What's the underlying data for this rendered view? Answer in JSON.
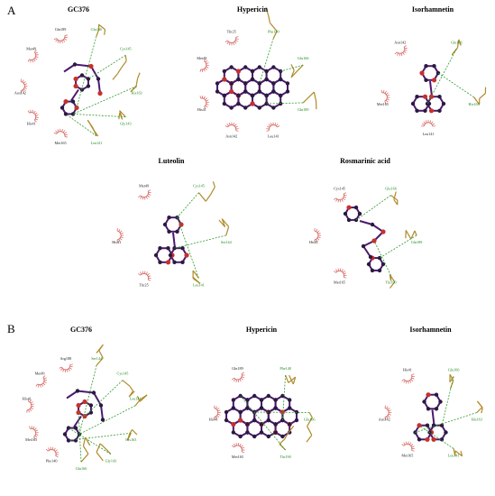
{
  "panels": [
    {
      "letter": "A",
      "diagrams": [
        {
          "title": "GC376",
          "residues_green": [
            "Glu166",
            "Cys145",
            "His163",
            "Gly143",
            "Leu141"
          ],
          "residues_black": [
            "Met165",
            "His41",
            "Asn142",
            "Met49",
            "Gln189"
          ]
        },
        {
          "title": "Hypericin",
          "residues_green": [
            "Phe140",
            "Glu166",
            "Gln189"
          ],
          "residues_black": [
            "Leu141",
            "Asn142",
            "His41",
            "Met49",
            "Thr25"
          ]
        },
        {
          "title": "Isorhamnetin",
          "residues_green": [
            "Glu166",
            "His163"
          ],
          "residues_black": [
            "Leu141",
            "Met165",
            "Asn142"
          ]
        },
        {
          "title": "Luteolin",
          "residues_green": [
            "Cys145",
            "Ser144",
            "Leu141"
          ],
          "residues_black": [
            "Thr25",
            "His41",
            "Met49"
          ]
        },
        {
          "title": "Rosmarinic acid",
          "residues_green": [
            "Glu166",
            "Gln189",
            "Thr190"
          ],
          "residues_black": [
            "Met165",
            "His41",
            "Cys145"
          ]
        }
      ]
    },
    {
      "letter": "B",
      "diagrams": [
        {
          "title": "GC376",
          "residues_green": [
            "Ser144",
            "Cys145",
            "Leu141",
            "His163",
            "Gly143",
            "Glu166"
          ],
          "residues_black": [
            "Phe140",
            "Met165",
            "His41",
            "Met49",
            "Arg188"
          ]
        },
        {
          "title": "Hypericin",
          "residues_green": [
            "Phe140",
            "Glu166",
            "Thr190"
          ],
          "residues_black": [
            "Met165",
            "His41",
            "Gln189"
          ]
        },
        {
          "title": "Isorhamnetin",
          "residues_green": [
            "Glu166",
            "His163",
            "Leu141"
          ],
          "residues_black": [
            "Met165",
            "Asn142",
            "His41"
          ]
        }
      ]
    }
  ],
  "colors": {
    "bond": "#4b1a6e",
    "atom_carbon": "#2a1a40",
    "atom_oxygen": "#c8302c",
    "residue_chain": "#b08a2a",
    "hbond": "#2e9a2e",
    "hydrophobic_arc": "#d8706c",
    "label_green": "#1f8a1f",
    "label_black": "#222222"
  }
}
